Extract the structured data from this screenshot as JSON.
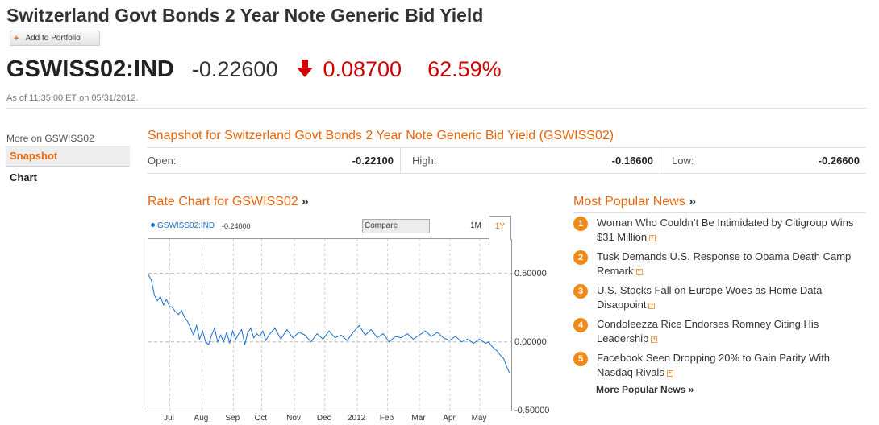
{
  "header": {
    "title": "Switzerland Govt Bonds 2 Year Note Generic Bid Yield",
    "add_portfolio": "Add to Portfolio",
    "ticker": "GSWISS02:IND",
    "price": "-0.22600",
    "change": "0.08700",
    "change_pct": "62.59%",
    "as_of": "As of 11:35:00 ET on 05/31/2012."
  },
  "sidebar": {
    "more_on": "More on GSWISS02",
    "items": [
      {
        "label": "Snapshot",
        "active": true
      },
      {
        "label": "Chart",
        "active": false
      }
    ]
  },
  "snapshot": {
    "title": "Snapshot for Switzerland Govt Bonds 2 Year Note Generic Bid Yield (GSWISS02)",
    "open_label": "Open:",
    "open": "-0.22100",
    "high_label": "High:",
    "high": "-0.16600",
    "low_label": "Low:",
    "low": "-0.26600"
  },
  "rate_chart": {
    "title": "Rate Chart for GSWISS02",
    "raquo": "»",
    "legend_name": "GSWISS02:IND",
    "legend_value": "-0.24000",
    "compare": "Compare",
    "range_1m": "1M",
    "range_1y": "1Y"
  },
  "chart_data": {
    "type": "line",
    "ylim": [
      -0.5,
      0.75
    ],
    "yticks": [
      "0.50000",
      "0.00000",
      "-0.50000"
    ],
    "ytick_values": [
      0.5,
      0.0,
      -0.5
    ],
    "xticks": [
      "Jul",
      "Aug",
      "Sep",
      "Oct",
      "Nov",
      "Dec",
      "2012",
      "Feb",
      "Mar",
      "Apr",
      "May"
    ],
    "xtick_positions": [
      7.1,
      17.8,
      28.2,
      37.6,
      48.5,
      58.6,
      69.4,
      79.4,
      90.0,
      100.2,
      110.1
    ],
    "x_range": [
      0,
      120
    ],
    "series": [
      {
        "name": "GSWISS02:IND",
        "color": "#1a6fd0",
        "x": [
          0,
          1,
          2,
          3,
          4,
          5,
          6,
          7,
          8,
          9,
          10,
          11,
          12,
          13,
          14,
          15,
          16,
          17,
          18,
          19,
          20,
          21,
          22,
          23,
          24,
          25,
          26,
          27,
          28,
          29,
          30,
          31,
          32,
          33,
          34,
          35,
          36,
          37,
          38,
          39,
          40,
          42,
          44,
          46,
          48,
          50,
          52,
          54,
          56,
          58,
          60,
          62,
          64,
          66,
          68,
          70,
          72,
          74,
          76,
          78,
          80,
          82,
          84,
          86,
          88,
          90,
          92,
          94,
          96,
          98,
          100,
          102,
          104,
          106,
          108,
          110,
          112,
          113,
          114,
          115,
          116,
          117,
          118,
          119,
          120
        ],
        "y": [
          0.49,
          0.45,
          0.34,
          0.3,
          0.33,
          0.27,
          0.31,
          0.26,
          0.25,
          0.22,
          0.2,
          0.23,
          0.18,
          0.15,
          0.1,
          0.05,
          0.12,
          0.02,
          0.08,
          0.0,
          -0.02,
          0.05,
          0.1,
          0.0,
          0.05,
          0.0,
          0.07,
          -0.01,
          0.08,
          0.02,
          0.06,
          0.09,
          -0.02,
          0.07,
          0.1,
          0.03,
          0.06,
          0.04,
          0.08,
          0.01,
          0.05,
          0.1,
          0.02,
          0.09,
          0.03,
          0.07,
          0.05,
          0.0,
          0.06,
          0.02,
          0.08,
          0.03,
          0.05,
          0.01,
          0.07,
          0.12,
          0.05,
          0.09,
          0.03,
          0.06,
          0.0,
          0.04,
          0.03,
          0.06,
          0.02,
          0.05,
          0.08,
          0.04,
          0.07,
          0.03,
          0.01,
          0.04,
          0.0,
          0.02,
          -0.01,
          0.02,
          -0.01,
          0.0,
          -0.03,
          -0.05,
          -0.07,
          -0.1,
          -0.12,
          -0.18,
          -0.23
        ]
      }
    ]
  },
  "news": {
    "title": "Most Popular News",
    "raquo": "»",
    "items": [
      {
        "num": "1",
        "text": "Woman Who Couldn’t Be Intimidated by Citigroup Wins $31 Million"
      },
      {
        "num": "2",
        "text": "Tusk Demands U.S. Response to Obama Death Camp Remark"
      },
      {
        "num": "3",
        "text": "U.S. Stocks Fall on Europe Woes as Home Data Disappoint"
      },
      {
        "num": "4",
        "text": "Condoleezza Rice Endorses Romney Citing His Leadership"
      },
      {
        "num": "5",
        "text": "Facebook Seen Dropping 20% to Gain Parity With Nasdaq Rivals"
      }
    ],
    "more": "More Popular News »",
    "expand_glyph": "+"
  },
  "colors": {
    "accent": "#e8650c",
    "negative": "#cc0000",
    "series": "#1a6fd0"
  }
}
